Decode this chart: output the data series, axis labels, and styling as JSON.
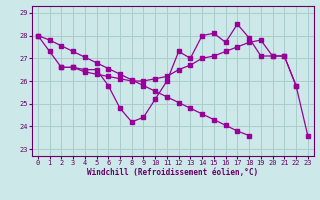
{
  "xlabel": "Windchill (Refroidissement éolien,°C)",
  "bg_color": "#cce8e8",
  "grid_color": "#aacccc",
  "line_color": "#990099",
  "x": [
    0,
    1,
    2,
    3,
    4,
    5,
    6,
    7,
    8,
    9,
    10,
    11,
    12,
    13,
    14,
    15,
    16,
    17,
    18,
    19,
    20,
    21,
    22,
    23
  ],
  "s1": [
    28.0,
    27.3,
    26.6,
    26.6,
    26.5,
    26.5,
    25.8,
    24.8,
    24.2,
    24.4,
    25.2,
    26.0,
    27.3,
    27.0,
    28.0,
    28.1,
    27.7,
    28.5,
    27.9,
    27.1,
    27.1,
    27.1,
    25.8,
    null
  ],
  "s2": [
    null,
    null,
    26.6,
    26.6,
    26.4,
    26.3,
    26.2,
    26.1,
    26.0,
    26.0,
    26.1,
    26.2,
    26.5,
    26.7,
    27.0,
    27.1,
    27.3,
    27.5,
    27.7,
    27.8,
    27.1,
    27.1,
    25.8,
    23.6
  ],
  "s3": [
    28.0,
    27.8,
    27.55,
    27.3,
    27.05,
    26.8,
    26.55,
    26.3,
    26.05,
    25.8,
    25.55,
    25.3,
    25.05,
    24.8,
    24.55,
    24.3,
    24.05,
    23.8,
    23.6,
    null,
    null,
    null,
    null,
    null
  ],
  "ylim": [
    22.7,
    29.3
  ],
  "xlim": [
    -0.5,
    23.5
  ],
  "yticks": [
    23,
    24,
    25,
    26,
    27,
    28,
    29
  ],
  "xticks": [
    0,
    1,
    2,
    3,
    4,
    5,
    6,
    7,
    8,
    9,
    10,
    11,
    12,
    13,
    14,
    15,
    16,
    17,
    18,
    19,
    20,
    21,
    22,
    23
  ]
}
